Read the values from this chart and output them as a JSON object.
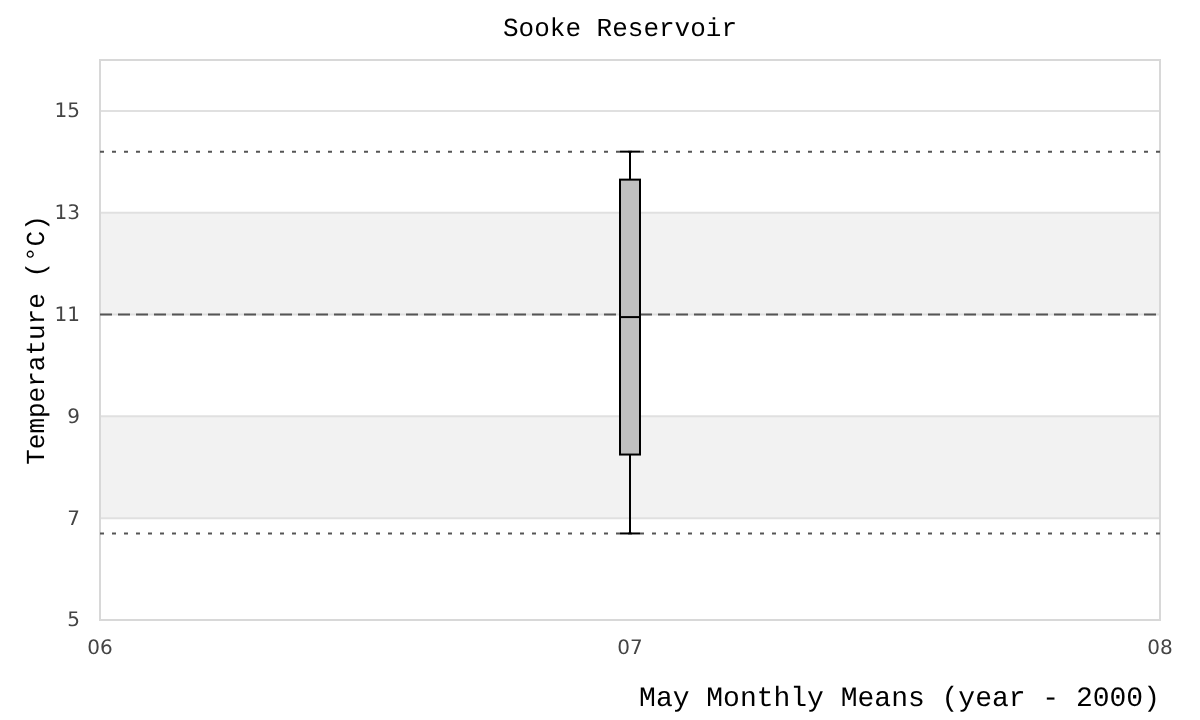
{
  "chart_data": {
    "type": "box",
    "title": "Sooke Reservoir",
    "xlabel": "May Monthly Means (year - 2000)",
    "ylabel": "Temperature (°C)",
    "x": [
      7
    ],
    "boxes": [
      {
        "low": 6.7,
        "q1": 8.25,
        "median": 10.95,
        "q3": 13.65,
        "high": 14.2
      }
    ],
    "color": "#c0c0c0",
    "xlim": [
      6,
      8
    ],
    "xticks": [
      {
        "value": 6,
        "label": "06"
      },
      {
        "value": 7,
        "label": "07"
      },
      {
        "value": 8,
        "label": "08"
      }
    ],
    "ylim": [
      5,
      16
    ],
    "yticks": [
      5,
      7,
      9,
      11,
      13,
      15
    ],
    "grid": "y",
    "bands": [
      {
        "axis": "y",
        "from": 7,
        "to": 9,
        "color": "#f2f2f2"
      },
      {
        "axis": "y",
        "from": 11,
        "to": 13,
        "color": "#f2f2f2"
      }
    ],
    "ref_lines": [
      {
        "axis": "y",
        "value": 14.2,
        "line_style": "dotted"
      },
      {
        "axis": "y",
        "value": 6.7,
        "line_style": "dotted"
      },
      {
        "axis": "y",
        "value": 11,
        "line_style": "dashed"
      }
    ]
  }
}
